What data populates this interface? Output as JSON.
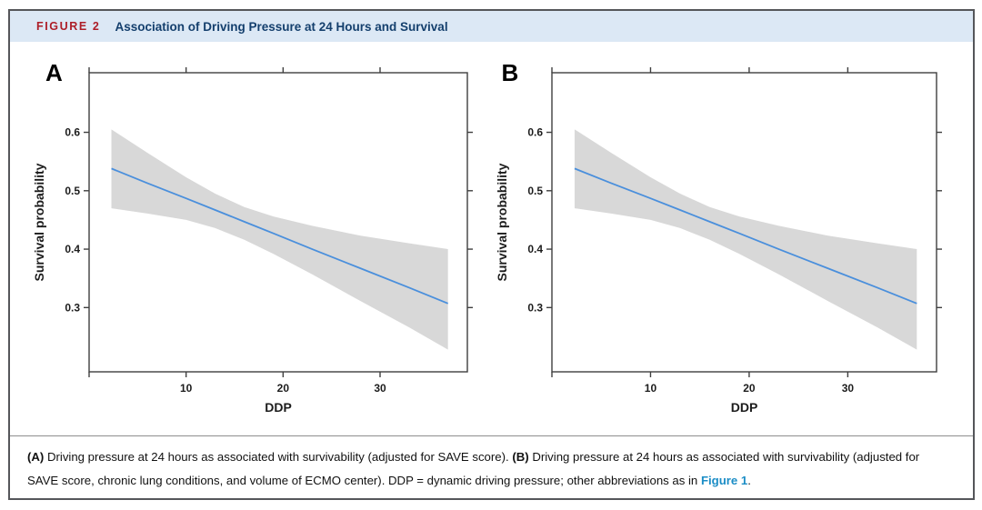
{
  "figure": {
    "label": "FIGURE 2",
    "title": "Association of Driving Pressure at 24 Hours and Survival"
  },
  "colors": {
    "header_bg": "#dce8f5",
    "figure_label_red": "#ad1e28",
    "title_navy": "#143f6d",
    "line": "#4a8fdc",
    "ci_band": "#d8d8d8",
    "axis": "#3f3f3f",
    "link_blue": "#1b8dc6",
    "frame_border": "#55565a"
  },
  "chart_data": [
    {
      "type": "line",
      "panel_label": "A",
      "xlabel": "DDP",
      "ylabel": "Survival probability",
      "xlim": [
        0,
        39
      ],
      "ylim": [
        0.19,
        0.702
      ],
      "x_ticks": [
        0,
        10,
        20,
        30
      ],
      "x_tick_labels": [
        "",
        "10",
        "20",
        "30"
      ],
      "y_ticks": [
        0.3,
        0.4,
        0.5,
        0.6
      ],
      "y_tick_labels": [
        "0.3",
        "0.4",
        "0.5",
        "0.6"
      ],
      "grid": "off",
      "legend": "none",
      "series": [
        {
          "name": "fit",
          "x": [
            2.3,
            6,
            10,
            13,
            16,
            19,
            23,
            28,
            33,
            37
          ],
          "y": [
            0.538,
            0.513,
            0.487,
            0.467,
            0.447,
            0.427,
            0.4,
            0.367,
            0.334,
            0.307
          ]
        },
        {
          "name": "ci_upper",
          "x": [
            2.3,
            6,
            10,
            13,
            16,
            19,
            23,
            28,
            33,
            37
          ],
          "y": [
            0.605,
            0.565,
            0.523,
            0.495,
            0.472,
            0.456,
            0.44,
            0.423,
            0.41,
            0.4
          ]
        },
        {
          "name": "ci_lower",
          "x": [
            2.3,
            6,
            10,
            13,
            16,
            19,
            23,
            28,
            33,
            37
          ],
          "y": [
            0.47,
            0.461,
            0.45,
            0.436,
            0.416,
            0.392,
            0.357,
            0.311,
            0.266,
            0.228
          ]
        }
      ]
    },
    {
      "type": "line",
      "panel_label": "B",
      "xlabel": "DDP",
      "ylabel": "Survival probability",
      "xlim": [
        0,
        39
      ],
      "ylim": [
        0.19,
        0.702
      ],
      "x_ticks": [
        0,
        10,
        20,
        30
      ],
      "x_tick_labels": [
        "",
        "10",
        "20",
        "30"
      ],
      "y_ticks": [
        0.3,
        0.4,
        0.5,
        0.6
      ],
      "y_tick_labels": [
        "0.3",
        "0.4",
        "0.5",
        "0.6"
      ],
      "grid": "off",
      "legend": "none",
      "series": [
        {
          "name": "fit",
          "x": [
            2.3,
            6,
            10,
            13,
            16,
            19,
            23,
            28,
            33,
            37
          ],
          "y": [
            0.538,
            0.513,
            0.487,
            0.467,
            0.447,
            0.427,
            0.4,
            0.367,
            0.334,
            0.307
          ]
        },
        {
          "name": "ci_upper",
          "x": [
            2.3,
            6,
            10,
            13,
            16,
            19,
            23,
            28,
            33,
            37
          ],
          "y": [
            0.605,
            0.565,
            0.523,
            0.495,
            0.472,
            0.456,
            0.44,
            0.423,
            0.41,
            0.4
          ]
        },
        {
          "name": "ci_lower",
          "x": [
            2.3,
            6,
            10,
            13,
            16,
            19,
            23,
            28,
            33,
            37
          ],
          "y": [
            0.47,
            0.461,
            0.45,
            0.436,
            0.416,
            0.392,
            0.357,
            0.311,
            0.266,
            0.228
          ]
        }
      ]
    }
  ],
  "caption": {
    "segments": [
      {
        "text": "(A)",
        "style": "bold"
      },
      {
        "text": " Driving pressure at 24 hours as associated with survivability (adjusted for SAVE score). ",
        "style": "normal"
      },
      {
        "text": "(B)",
        "style": "bold"
      },
      {
        "text": " Driving pressure at 24 hours as associated with survivability (adjusted for SAVE score, chronic lung conditions, and volume of ECMO center). DDP = dynamic driving pressure; other abbreviations as in ",
        "style": "normal"
      },
      {
        "text": "Figure 1",
        "style": "link"
      },
      {
        "text": ".",
        "style": "normal"
      }
    ]
  }
}
